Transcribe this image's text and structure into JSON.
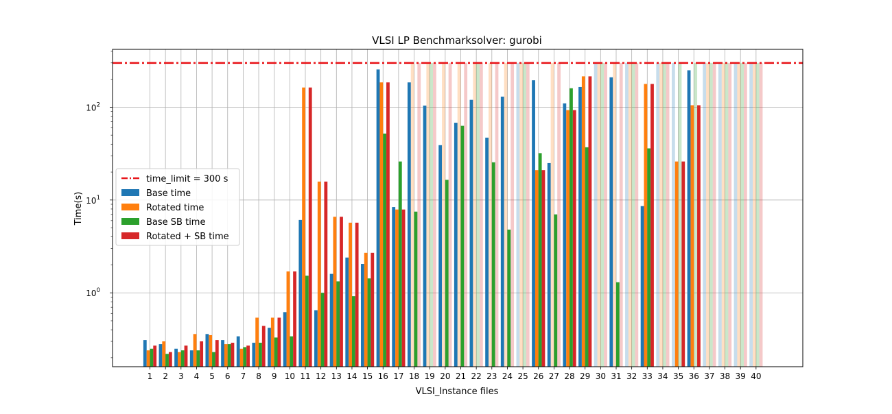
{
  "chart_data": {
    "type": "bar",
    "title": "VLSI LP Benchmarksolver: gurobi",
    "xlabel": "VLSI_Instance files",
    "ylabel": "Time(s)",
    "yscale": "log",
    "ylim": [
      0.16,
      420
    ],
    "y_ticks": [
      {
        "value": 1,
        "base": "10",
        "exp": "0"
      },
      {
        "value": 10,
        "base": "10",
        "exp": "1"
      },
      {
        "value": 100,
        "base": "10",
        "exp": "2"
      }
    ],
    "grid": true,
    "legend_position": "center-left",
    "time_limit": {
      "label": "time_limit = 300 s",
      "value": 300,
      "color": "#e8161b"
    },
    "categories": [
      "1",
      "2",
      "3",
      "4",
      "5",
      "6",
      "7",
      "8",
      "9",
      "10",
      "11",
      "12",
      "13",
      "14",
      "15",
      "16",
      "17",
      "18",
      "19",
      "20",
      "21",
      "22",
      "23",
      "24",
      "25",
      "26",
      "27",
      "28",
      "29",
      "30",
      "31",
      "32",
      "33",
      "34",
      "35",
      "36",
      "37",
      "38",
      "39",
      "40"
    ],
    "series": [
      {
        "name": "Base time",
        "color": "#1f77b4",
        "values": [
          0.31,
          0.28,
          0.25,
          0.24,
          0.36,
          0.31,
          0.34,
          0.29,
          0.42,
          0.62,
          6.1,
          0.65,
          1.6,
          2.4,
          2.05,
          255,
          8.4,
          185,
          104,
          39,
          68,
          120,
          47,
          130,
          300,
          195,
          25,
          110,
          165,
          300,
          210,
          300,
          8.6,
          300,
          300,
          250,
          300,
          300,
          300,
          300
        ],
        "timeout": [
          false,
          false,
          false,
          false,
          false,
          false,
          false,
          false,
          false,
          false,
          false,
          false,
          false,
          false,
          false,
          false,
          false,
          false,
          false,
          false,
          false,
          false,
          false,
          false,
          true,
          false,
          false,
          false,
          false,
          true,
          false,
          true,
          false,
          true,
          true,
          false,
          true,
          true,
          true,
          true
        ]
      },
      {
        "name": "Rotated time",
        "color": "#ff7f0e",
        "values": [
          0.24,
          0.3,
          0.23,
          0.36,
          0.35,
          0.28,
          0.25,
          0.54,
          0.54,
          1.7,
          163,
          15.8,
          6.6,
          5.7,
          2.7,
          185,
          7.9,
          300,
          300,
          300,
          300,
          300,
          300,
          300,
          300,
          21,
          300,
          93,
          215,
          300,
          300,
          300,
          178,
          300,
          26,
          105,
          300,
          300,
          300,
          300
        ],
        "timeout": [
          false,
          false,
          false,
          false,
          false,
          false,
          false,
          false,
          false,
          false,
          false,
          false,
          false,
          false,
          false,
          false,
          false,
          true,
          true,
          true,
          true,
          true,
          true,
          true,
          true,
          false,
          true,
          false,
          false,
          true,
          true,
          true,
          false,
          true,
          false,
          false,
          true,
          true,
          true,
          true
        ]
      },
      {
        "name": "Base SB time",
        "color": "#2ca02c",
        "values": [
          0.25,
          0.22,
          0.24,
          0.24,
          0.23,
          0.28,
          0.26,
          0.29,
          0.33,
          0.34,
          1.53,
          1.0,
          1.33,
          0.92,
          1.43,
          52,
          26,
          7.5,
          300,
          16.5,
          63,
          300,
          25.5,
          4.8,
          300,
          32,
          7.0,
          160,
          37,
          300,
          1.3,
          300,
          36,
          300,
          300,
          300,
          300,
          300,
          300,
          300
        ],
        "timeout": [
          false,
          false,
          false,
          false,
          false,
          false,
          false,
          false,
          false,
          false,
          false,
          false,
          false,
          false,
          false,
          false,
          false,
          false,
          true,
          false,
          false,
          true,
          false,
          false,
          true,
          false,
          false,
          false,
          false,
          true,
          false,
          true,
          false,
          true,
          true,
          true,
          true,
          true,
          true,
          true
        ]
      },
      {
        "name": "Rotated + SB time",
        "color": "#d62728",
        "values": [
          0.27,
          0.23,
          0.27,
          0.3,
          0.31,
          0.29,
          0.27,
          0.44,
          0.54,
          1.7,
          163,
          15.8,
          6.6,
          5.7,
          2.7,
          185,
          7.9,
          300,
          300,
          300,
          300,
          300,
          300,
          300,
          300,
          21,
          300,
          93,
          215,
          300,
          300,
          300,
          178,
          300,
          26,
          105,
          300,
          300,
          300,
          300
        ],
        "timeout": [
          false,
          false,
          false,
          false,
          false,
          false,
          false,
          false,
          false,
          false,
          false,
          false,
          false,
          false,
          false,
          false,
          false,
          true,
          true,
          true,
          true,
          true,
          true,
          true,
          true,
          false,
          true,
          false,
          false,
          true,
          true,
          true,
          false,
          true,
          false,
          false,
          true,
          true,
          true,
          true
        ]
      }
    ]
  }
}
